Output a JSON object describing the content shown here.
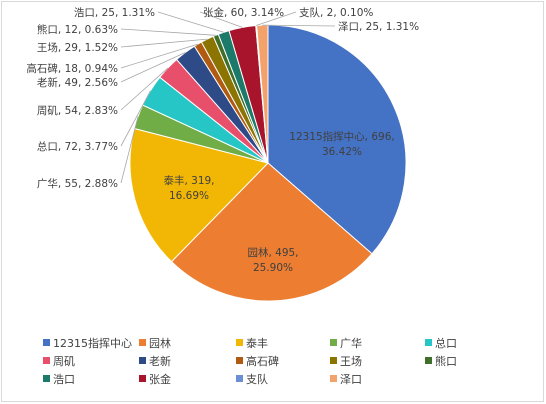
{
  "chart_data": {
    "type": "pie",
    "title": "",
    "legend_position": "bottom",
    "slices": [
      {
        "name": "12315指挥中心",
        "value": 696,
        "percent": "36.42%",
        "color": "#4472C4"
      },
      {
        "name": "园林",
        "value": 495,
        "percent": "25.90%",
        "color": "#ED7D31"
      },
      {
        "name": "泰丰",
        "value": 319,
        "percent": "16.69%",
        "color": "#F2B705"
      },
      {
        "name": "广华",
        "value": 55,
        "percent": "2.88%",
        "color": "#70AD47"
      },
      {
        "name": "总口",
        "value": 72,
        "percent": "3.77%",
        "color": "#26C6C6"
      },
      {
        "name": "周矶",
        "value": 54,
        "percent": "2.83%",
        "color": "#E84F6B"
      },
      {
        "name": "老新",
        "value": 49,
        "percent": "2.56%",
        "color": "#2E4A87"
      },
      {
        "name": "高石碑",
        "value": 18,
        "percent": "0.94%",
        "color": "#B05A12"
      },
      {
        "name": "王场",
        "value": 29,
        "percent": "1.52%",
        "color": "#8C7400"
      },
      {
        "name": "熊口",
        "value": 12,
        "percent": "0.63%",
        "color": "#3F6F2A"
      },
      {
        "name": "浩口",
        "value": 25,
        "percent": "1.31%",
        "color": "#1C7A6B"
      },
      {
        "name": "张金",
        "value": 60,
        "percent": "3.14%",
        "color": "#A8142C"
      },
      {
        "name": "支队",
        "value": 2,
        "percent": "0.10%",
        "color": "#6A8FD6"
      },
      {
        "name": "泽口",
        "value": 25,
        "percent": "1.31%",
        "color": "#F4A26C"
      }
    ]
  }
}
